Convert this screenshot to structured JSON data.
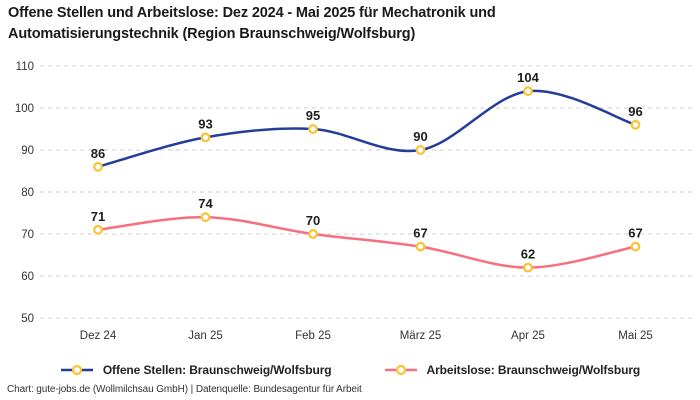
{
  "title_lines": [
    "Offene Stellen und Arbeitslose: Dez 2024 - Mai 2025 für Mechatronik und",
    "Automatisierungstechnik (Region Braunschweig/Wolfsburg)"
  ],
  "footer_credit": "Chart: gute-jobs.de (Wollmilchsau GmbH) | Datenquelle: Bundesagentur für Arbeit",
  "chart_data": {
    "type": "line",
    "categories": [
      "Dez 24",
      "Jan 25",
      "Feb 25",
      "März 25",
      "Apr 25",
      "Mai 25"
    ],
    "series": [
      {
        "name": "Offene Stellen: Braunschweig/Wolfsburg",
        "color": "#233d9a",
        "values": [
          86,
          93,
          95,
          90,
          104,
          96
        ]
      },
      {
        "name": "Arbeitslose: Braunschweig/Wolfsburg",
        "color": "#f86f80",
        "values": [
          71,
          74,
          70,
          67,
          62,
          67
        ]
      }
    ],
    "ylim": [
      50,
      110
    ],
    "yticks": [
      110,
      100,
      90,
      80,
      70,
      60,
      50
    ],
    "grid": "horizontal-dashed",
    "grid_color": "#cdcdcd",
    "marker_ring_color": "#fbc232",
    "marker_fill_color": "#ffffff",
    "axis_text_color": "#333333",
    "value_label_color": "#1e1e1e",
    "value_labels_shown": true,
    "legend_position": "bottom",
    "curve": "smooth"
  }
}
